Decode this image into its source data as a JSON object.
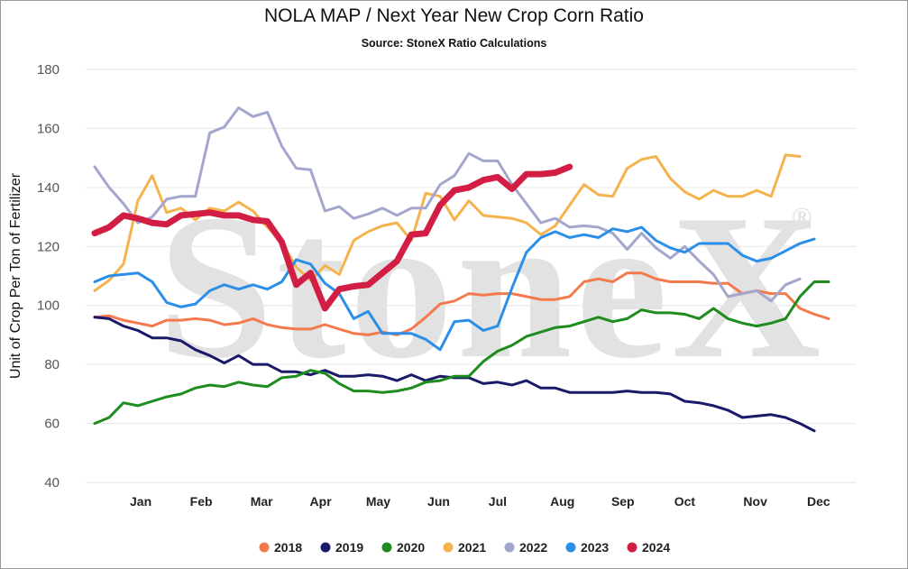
{
  "chart_data": {
    "type": "line",
    "title": "NOLA MAP / Next Year New Crop Corn Ratio",
    "subtitle": "Source: StoneX Ratio Calculations",
    "ylabel": "Unit of Crop Per Ton of Fertilizer",
    "xlabel": "",
    "ylim": [
      40,
      180
    ],
    "yticks": [
      40,
      60,
      80,
      100,
      120,
      140,
      160,
      180
    ],
    "x_unit": "week of year",
    "xlim": [
      0,
      52
    ],
    "month_ticks": [
      {
        "label": "Jan",
        "x": 3.2
      },
      {
        "label": "Feb",
        "x": 7.4
      },
      {
        "label": "Mar",
        "x": 11.6
      },
      {
        "label": "Apr",
        "x": 15.7
      },
      {
        "label": "May",
        "x": 19.7
      },
      {
        "label": "Jun",
        "x": 23.9
      },
      {
        "label": "Jul",
        "x": 28.0
      },
      {
        "label": "Aug",
        "x": 32.5
      },
      {
        "label": "Sep",
        "x": 36.7
      },
      {
        "label": "Oct",
        "x": 41.0
      },
      {
        "label": "Nov",
        "x": 45.9
      },
      {
        "label": "Dec",
        "x": 50.3
      }
    ],
    "grid": true,
    "legend_position": "bottom",
    "watermark": "StoneX",
    "series": [
      {
        "name": "2018",
        "color": "#f47a4e",
        "width": 3,
        "values": [
          96,
          96.5,
          95,
          94,
          93,
          95,
          95,
          95.5,
          95,
          93.5,
          94,
          95.5,
          93.5,
          92.5,
          92,
          92,
          93.5,
          92,
          90.5,
          90,
          91,
          90,
          92,
          96,
          100.5,
          101.5,
          104,
          103.5,
          104,
          104,
          103,
          102,
          102,
          103,
          108,
          109,
          108,
          111,
          111,
          109,
          108,
          108,
          108,
          107.5,
          107.5,
          104,
          105,
          104,
          104,
          99,
          97,
          95.5
        ]
      },
      {
        "name": "2019",
        "color": "#1a1a6b",
        "width": 3,
        "values": [
          96,
          95.5,
          93,
          91.5,
          89,
          89,
          88,
          85,
          83,
          80.5,
          83,
          80,
          80,
          77.5,
          77.5,
          76.5,
          78,
          76,
          76,
          76.5,
          76,
          74.5,
          76.5,
          74.5,
          76,
          75.5,
          75.5,
          73.5,
          74,
          73,
          74.5,
          72,
          72,
          70.5,
          70.5,
          70.5,
          70.5,
          71,
          70.5,
          70.5,
          70,
          67.5,
          67,
          66,
          64.5,
          62,
          62.5,
          63,
          62,
          60,
          57.5
        ]
      },
      {
        "name": "2020",
        "color": "#1e8c1e",
        "width": 3,
        "values": [
          60,
          62,
          67,
          66,
          67.5,
          69,
          70,
          72,
          73,
          72.5,
          74,
          73,
          72.5,
          75.5,
          76,
          78,
          77,
          73.5,
          71,
          71,
          70.5,
          71,
          72,
          74,
          74.5,
          76,
          76,
          81,
          84.5,
          86.5,
          89.5,
          91,
          92.5,
          93,
          94.5,
          96,
          94.5,
          95.5,
          98.5,
          97.5,
          97.5,
          97,
          95.5,
          99,
          95.5,
          94,
          93,
          94,
          95.5,
          103,
          108,
          108
        ]
      },
      {
        "name": "2021",
        "color": "#f5b34e",
        "width": 3,
        "values": [
          105,
          108.5,
          114,
          135.5,
          144,
          131.5,
          133,
          129,
          133,
          132,
          135,
          132,
          126.5,
          121.5,
          113,
          108.5,
          113.5,
          110.5,
          122,
          125,
          127,
          128,
          122,
          138,
          137,
          129,
          135.5,
          130.5,
          130,
          129.5,
          128,
          124,
          127,
          134,
          141,
          137.5,
          137,
          146.5,
          149.5,
          150.5,
          143,
          138.5,
          136,
          139,
          137,
          137,
          139,
          137,
          151,
          150.5
        ]
      },
      {
        "name": "2022",
        "color": "#a3a6cd",
        "width": 3,
        "values": [
          147,
          140,
          134.5,
          128,
          130,
          136,
          137,
          137,
          158.5,
          160.5,
          167,
          164,
          165.5,
          154,
          146.5,
          146,
          132,
          133.5,
          129.5,
          131,
          133,
          130.5,
          133,
          133,
          141,
          144,
          151.5,
          149,
          149,
          141,
          134.5,
          128,
          129.5,
          126.5,
          127,
          126.5,
          124.5,
          119,
          124.5,
          119.5,
          116,
          120,
          115,
          110.5,
          103,
          104,
          105,
          101.5,
          107,
          109
        ]
      },
      {
        "name": "2023",
        "color": "#2b8fe8",
        "width": 3,
        "values": [
          108,
          110,
          110.5,
          111,
          108,
          101,
          99.5,
          100.5,
          105,
          107,
          105.5,
          107,
          105.5,
          108,
          115.5,
          114,
          107.5,
          104,
          95.5,
          98,
          90.5,
          90.5,
          90.5,
          88.5,
          85,
          94.5,
          95,
          91.5,
          93,
          106,
          118,
          123,
          125,
          123,
          124,
          123,
          126,
          125,
          126.5,
          122,
          119.5,
          118,
          121,
          121,
          121,
          117,
          115,
          116,
          118.5,
          121,
          122.5
        ]
      },
      {
        "name": "2024",
        "color": "#d21e44",
        "width": 7,
        "values": [
          124.5,
          126.5,
          130.5,
          129.5,
          128,
          127.5,
          130.5,
          131,
          131.5,
          130.5,
          130.5,
          129,
          128.5,
          121.5,
          107,
          111,
          99,
          105.5,
          106.5,
          107,
          111,
          115,
          124,
          124.5,
          134,
          139,
          140,
          142.5,
          143.5,
          139.5,
          144.5,
          144.5,
          145,
          147
        ]
      }
    ]
  }
}
